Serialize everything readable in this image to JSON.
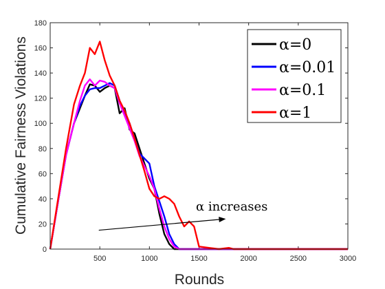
{
  "chart_data": {
    "type": "line",
    "xlabel": "Rounds",
    "ylabel": "Cumulative Fairness Violations",
    "xlim": [
      0,
      3000
    ],
    "ylim": [
      0,
      180
    ],
    "xticks": [
      500,
      1000,
      1500,
      2000,
      2500,
      3000
    ],
    "yticks": [
      0,
      20,
      40,
      60,
      80,
      100,
      120,
      140,
      160,
      180
    ],
    "grid": false,
    "legend_position": "top-right",
    "annotation": {
      "text": "α increases",
      "arrow_from": [
        490,
        15
      ],
      "arrow_to": [
        1770,
        24
      ]
    },
    "series": [
      {
        "name": "α=0",
        "color": "#000000",
        "x": [
          0,
          80,
          160,
          240,
          300,
          350,
          400,
          450,
          500,
          550,
          600,
          650,
          700,
          750,
          800,
          850,
          900,
          950,
          1000,
          1050,
          1100,
          1150,
          1200,
          1250,
          1300,
          1500,
          2000,
          3000
        ],
        "y": [
          0,
          38,
          75,
          100,
          112,
          122,
          131,
          130,
          125,
          128,
          130,
          128,
          108,
          112,
          95,
          92,
          80,
          68,
          56,
          48,
          28,
          12,
          4,
          0,
          0,
          0,
          0,
          0
        ]
      },
      {
        "name": "α=0.01",
        "color": "#0000ff",
        "x": [
          0,
          80,
          160,
          240,
          300,
          350,
          400,
          450,
          500,
          550,
          600,
          650,
          700,
          750,
          800,
          850,
          900,
          950,
          1000,
          1050,
          1100,
          1150,
          1200,
          1250,
          1300,
          1500,
          2000,
          3000
        ],
        "y": [
          0,
          38,
          75,
          100,
          114,
          122,
          127,
          128,
          128,
          130,
          132,
          130,
          118,
          108,
          100,
          88,
          76,
          72,
          68,
          50,
          38,
          26,
          12,
          4,
          0,
          0,
          0,
          0
        ]
      },
      {
        "name": "α=0.1",
        "color": "#ff00ff",
        "x": [
          0,
          80,
          160,
          240,
          300,
          350,
          400,
          450,
          500,
          550,
          600,
          650,
          700,
          750,
          800,
          850,
          900,
          950,
          1000,
          1050,
          1100,
          1150,
          1200,
          1250,
          1300,
          1500,
          2000,
          3000
        ],
        "y": [
          0,
          38,
          75,
          100,
          118,
          130,
          135,
          130,
          134,
          133,
          130,
          128,
          116,
          106,
          96,
          86,
          74,
          66,
          58,
          48,
          32,
          18,
          8,
          2,
          0,
          0,
          0,
          0
        ]
      },
      {
        "name": "α=1",
        "color": "#ff0000",
        "x": [
          0,
          80,
          160,
          240,
          300,
          350,
          400,
          450,
          500,
          550,
          600,
          650,
          700,
          750,
          800,
          850,
          900,
          950,
          1000,
          1050,
          1100,
          1150,
          1200,
          1250,
          1300,
          1350,
          1400,
          1450,
          1500,
          1600,
          1700,
          1800,
          1850,
          1900,
          2000,
          3000
        ],
        "y": [
          0,
          40,
          80,
          115,
          130,
          140,
          160,
          155,
          165,
          150,
          138,
          130,
          118,
          110,
          100,
          88,
          75,
          62,
          48,
          42,
          40,
          42,
          40,
          36,
          26,
          18,
          22,
          18,
          2,
          1,
          0,
          1,
          0,
          0,
          0,
          0
        ]
      }
    ]
  }
}
